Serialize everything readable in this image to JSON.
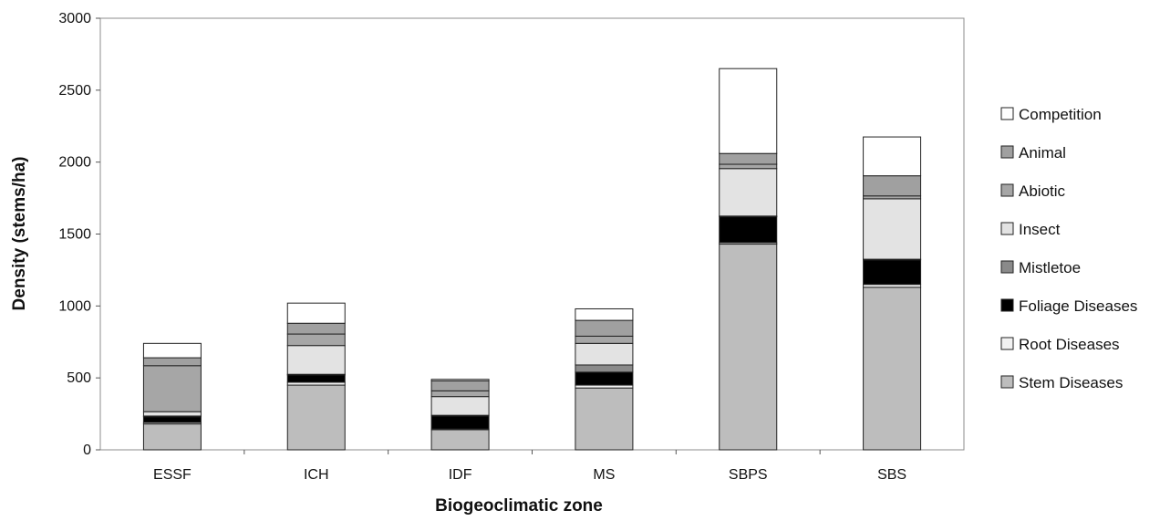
{
  "chart_data": {
    "type": "bar",
    "stacked": true,
    "xlabel": "Biogeoclimatic zone",
    "ylabel": "Density (stems/ha)",
    "ylim": [
      0,
      3000
    ],
    "yticks": [
      0,
      500,
      1000,
      1500,
      2000,
      2500,
      3000
    ],
    "grid": false,
    "legend_position": "right",
    "categories": [
      "ESSF",
      "ICH",
      "IDF",
      "MS",
      "SBPS",
      "SBS"
    ],
    "series": [
      {
        "name": "Stem Diseases",
        "color": "#bdbdbd",
        "values": [
          180,
          450,
          140,
          430,
          1430,
          1130
        ]
      },
      {
        "name": "Root Diseases",
        "color": "#f2f2f2",
        "values": [
          10,
          20,
          5,
          20,
          10,
          20
        ]
      },
      {
        "name": "Foliage Diseases",
        "color": "#000000",
        "values": [
          40,
          50,
          90,
          90,
          180,
          170
        ]
      },
      {
        "name": "Mistletoe",
        "color": "#8a8a8a",
        "values": [
          5,
          5,
          5,
          50,
          5,
          5
        ]
      },
      {
        "name": "Insect",
        "color": "#e3e3e3",
        "values": [
          30,
          200,
          130,
          150,
          330,
          420
        ]
      },
      {
        "name": "Abiotic",
        "color": "#a6a6a6",
        "values": [
          320,
          80,
          40,
          50,
          30,
          20
        ]
      },
      {
        "name": "Animal",
        "color": "#a0a0a0",
        "values": [
          55,
          75,
          70,
          110,
          75,
          140
        ]
      },
      {
        "name": "Competition",
        "color": "#ffffff",
        "values": [
          100,
          140,
          10,
          80,
          590,
          270
        ]
      }
    ]
  }
}
